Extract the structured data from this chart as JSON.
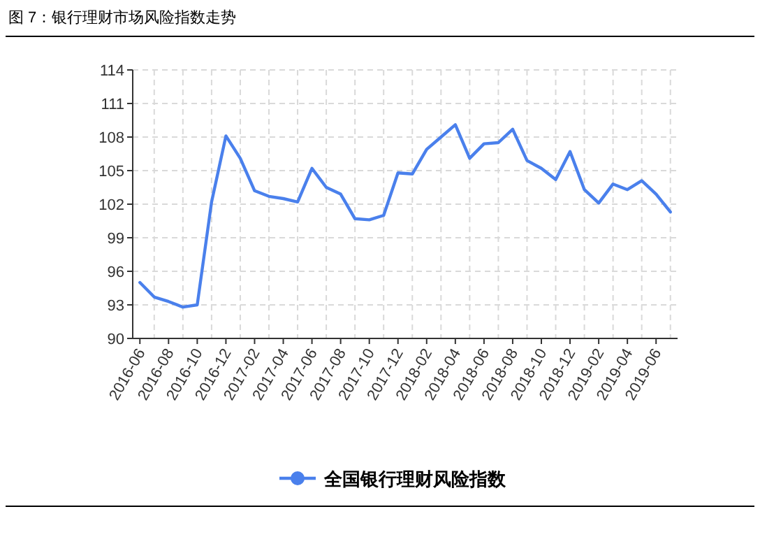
{
  "chart_data": {
    "type": "line",
    "title": "图 7：银行理财市场风险指数走势",
    "categories": [
      "2016-06",
      null,
      "2016-08",
      null,
      "2016-10",
      null,
      "2016-12",
      null,
      "2017-02",
      null,
      "2017-04",
      null,
      "2017-06",
      null,
      "2017-08",
      null,
      "2017-10",
      null,
      "2017-12",
      null,
      "2018-02",
      null,
      "2018-04",
      null,
      "2018-06",
      null,
      "2018-08",
      null,
      "2018-10",
      null,
      "2018-12",
      null,
      "2019-02",
      null,
      "2019-04",
      null,
      "2019-06",
      null
    ],
    "series": [
      {
        "name": "全国银行理财风险指数",
        "color": "#4a80ec",
        "values": [
          95.0,
          93.7,
          93.3,
          92.8,
          93.0,
          102.2,
          108.1,
          106.1,
          103.2,
          102.7,
          102.5,
          102.2,
          105.2,
          103.5,
          102.9,
          100.7,
          100.6,
          101.0,
          104.8,
          104.7,
          106.9,
          108.0,
          109.1,
          106.1,
          107.4,
          107.5,
          108.7,
          105.9,
          105.2,
          104.2,
          106.7,
          103.3,
          102.1,
          103.8,
          103.3,
          104.1,
          102.9,
          101.3
        ]
      }
    ],
    "ylim": [
      90,
      114
    ],
    "yticks": [
      90,
      93,
      96,
      99,
      102,
      105,
      108,
      111,
      114
    ],
    "grid": true,
    "legend": "bottom",
    "marker": "none",
    "line_style": "solid"
  }
}
